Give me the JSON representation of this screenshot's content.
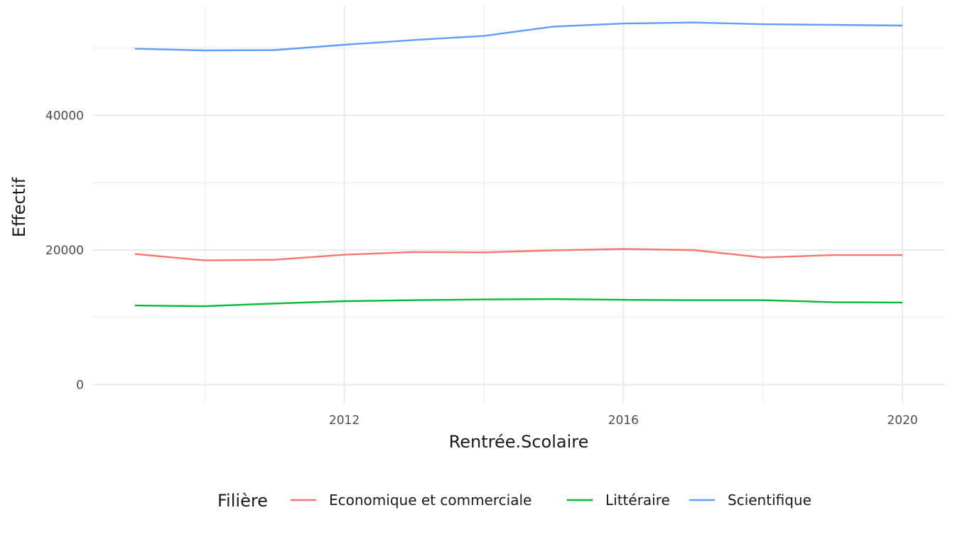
{
  "chart_data": {
    "type": "line",
    "title": "",
    "xlabel": "Rentrée.Scolaire",
    "ylabel": "Effectif",
    "x": [
      2009,
      2010,
      2011,
      2012,
      2013,
      2014,
      2015,
      2016,
      2017,
      2018,
      2019,
      2020
    ],
    "xlim": [
      2008.4,
      2020.6
    ],
    "ylim": [
      -2800,
      56300
    ],
    "x_ticks": [
      2012,
      2016,
      2020
    ],
    "x_tick_labels": [
      "2012",
      "2016",
      "2020"
    ],
    "x_minor_ticks": [
      2010,
      2014,
      2018
    ],
    "y_ticks": [
      0,
      20000,
      40000
    ],
    "y_tick_labels": [
      "0",
      "20000",
      "40000"
    ],
    "y_minor_ticks": [
      10000,
      30000,
      50000
    ],
    "grid": true,
    "legend": {
      "title": "Filière",
      "position": "bottom"
    },
    "series": [
      {
        "name": "Economique et commerciale",
        "color": "#F8766D",
        "values": [
          19400,
          18450,
          18550,
          19300,
          19700,
          19650,
          19950,
          20150,
          20000,
          18900,
          19250,
          19250
        ]
      },
      {
        "name": "Littéraire",
        "color": "#00BA38",
        "values": [
          11750,
          11650,
          12050,
          12400,
          12550,
          12650,
          12700,
          12600,
          12550,
          12550,
          12250,
          12200
        ]
      },
      {
        "name": "Scientifique",
        "color": "#619CFF",
        "values": [
          49900,
          49650,
          49700,
          50500,
          51200,
          51800,
          53200,
          53650,
          53800,
          53550,
          53450,
          53350
        ]
      }
    ]
  }
}
